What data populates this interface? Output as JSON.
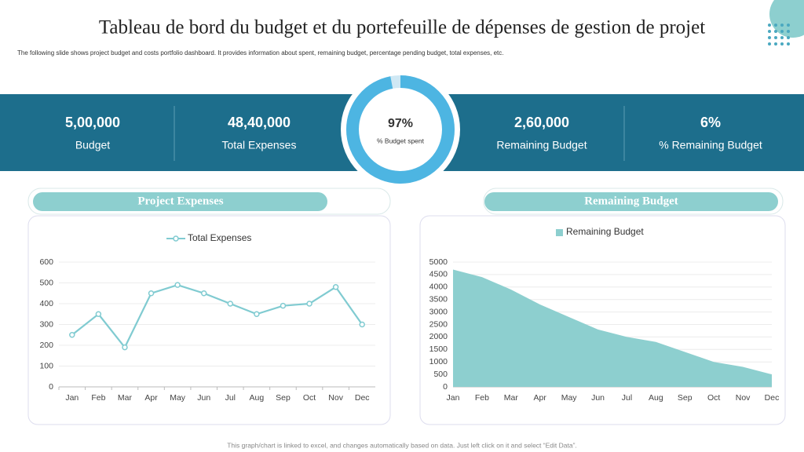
{
  "header": {
    "title": "Tableau de bord du budget et du portefeuille de dépenses de gestion de projet",
    "subtitle": "The following slide shows project budget and costs portfolio dashboard. It provides information about spent, remaining budget, percentage pending budget, total expenses, etc."
  },
  "kpis": [
    {
      "value": "5,00,000",
      "label": "Budget"
    },
    {
      "value": "48,40,000",
      "label": "Total Expenses"
    },
    {
      "value": "2,60,000",
      "label": "Remaining Budget"
    },
    {
      "value": "6%",
      "label": "% Remaining Budget"
    }
  ],
  "panels": [
    "Project Expenses",
    "Remaining Budget"
  ],
  "footer": "This graph/chart is linked to excel, and changes automatically based on data. Just left click on it and select “Edit Data”.",
  "chart_data": [
    {
      "type": "donut",
      "values": [
        97
      ],
      "value_labels": [
        "97%"
      ],
      "caption": "% Budget spent",
      "color": "#4db5e2"
    },
    {
      "type": "line",
      "categories": [
        "Jan",
        "Feb",
        "Mar",
        "Apr",
        "May",
        "Jun",
        "Jul",
        "Aug",
        "Sep",
        "Oct",
        "Nov",
        "Dec"
      ],
      "series": [
        {
          "name": "Total  Expenses",
          "color": "#80cbd1",
          "values": [
            250,
            350,
            190,
            450,
            490,
            450,
            400,
            350,
            390,
            400,
            480,
            300
          ]
        }
      ],
      "ylim": [
        0,
        600
      ],
      "yticks": [
        0,
        100,
        200,
        300,
        400,
        500,
        600
      ],
      "grid": true
    },
    {
      "type": "area",
      "categories": [
        "Jan",
        "Feb",
        "Mar",
        "Apr",
        "May",
        "Jun",
        "Jul",
        "Aug",
        "Sep",
        "Oct",
        "Nov",
        "Dec"
      ],
      "series": [
        {
          "name": "Remaining Budget",
          "color": "#8dcfcf",
          "values": [
            4700,
            4400,
            3900,
            3300,
            2800,
            2300,
            2000,
            1800,
            1400,
            1000,
            800,
            500
          ]
        }
      ],
      "ylim": [
        0,
        5000
      ],
      "yticks": [
        0,
        500,
        1000,
        1500,
        2000,
        2500,
        3000,
        3500,
        4000,
        4500,
        5000
      ],
      "grid": true
    }
  ]
}
